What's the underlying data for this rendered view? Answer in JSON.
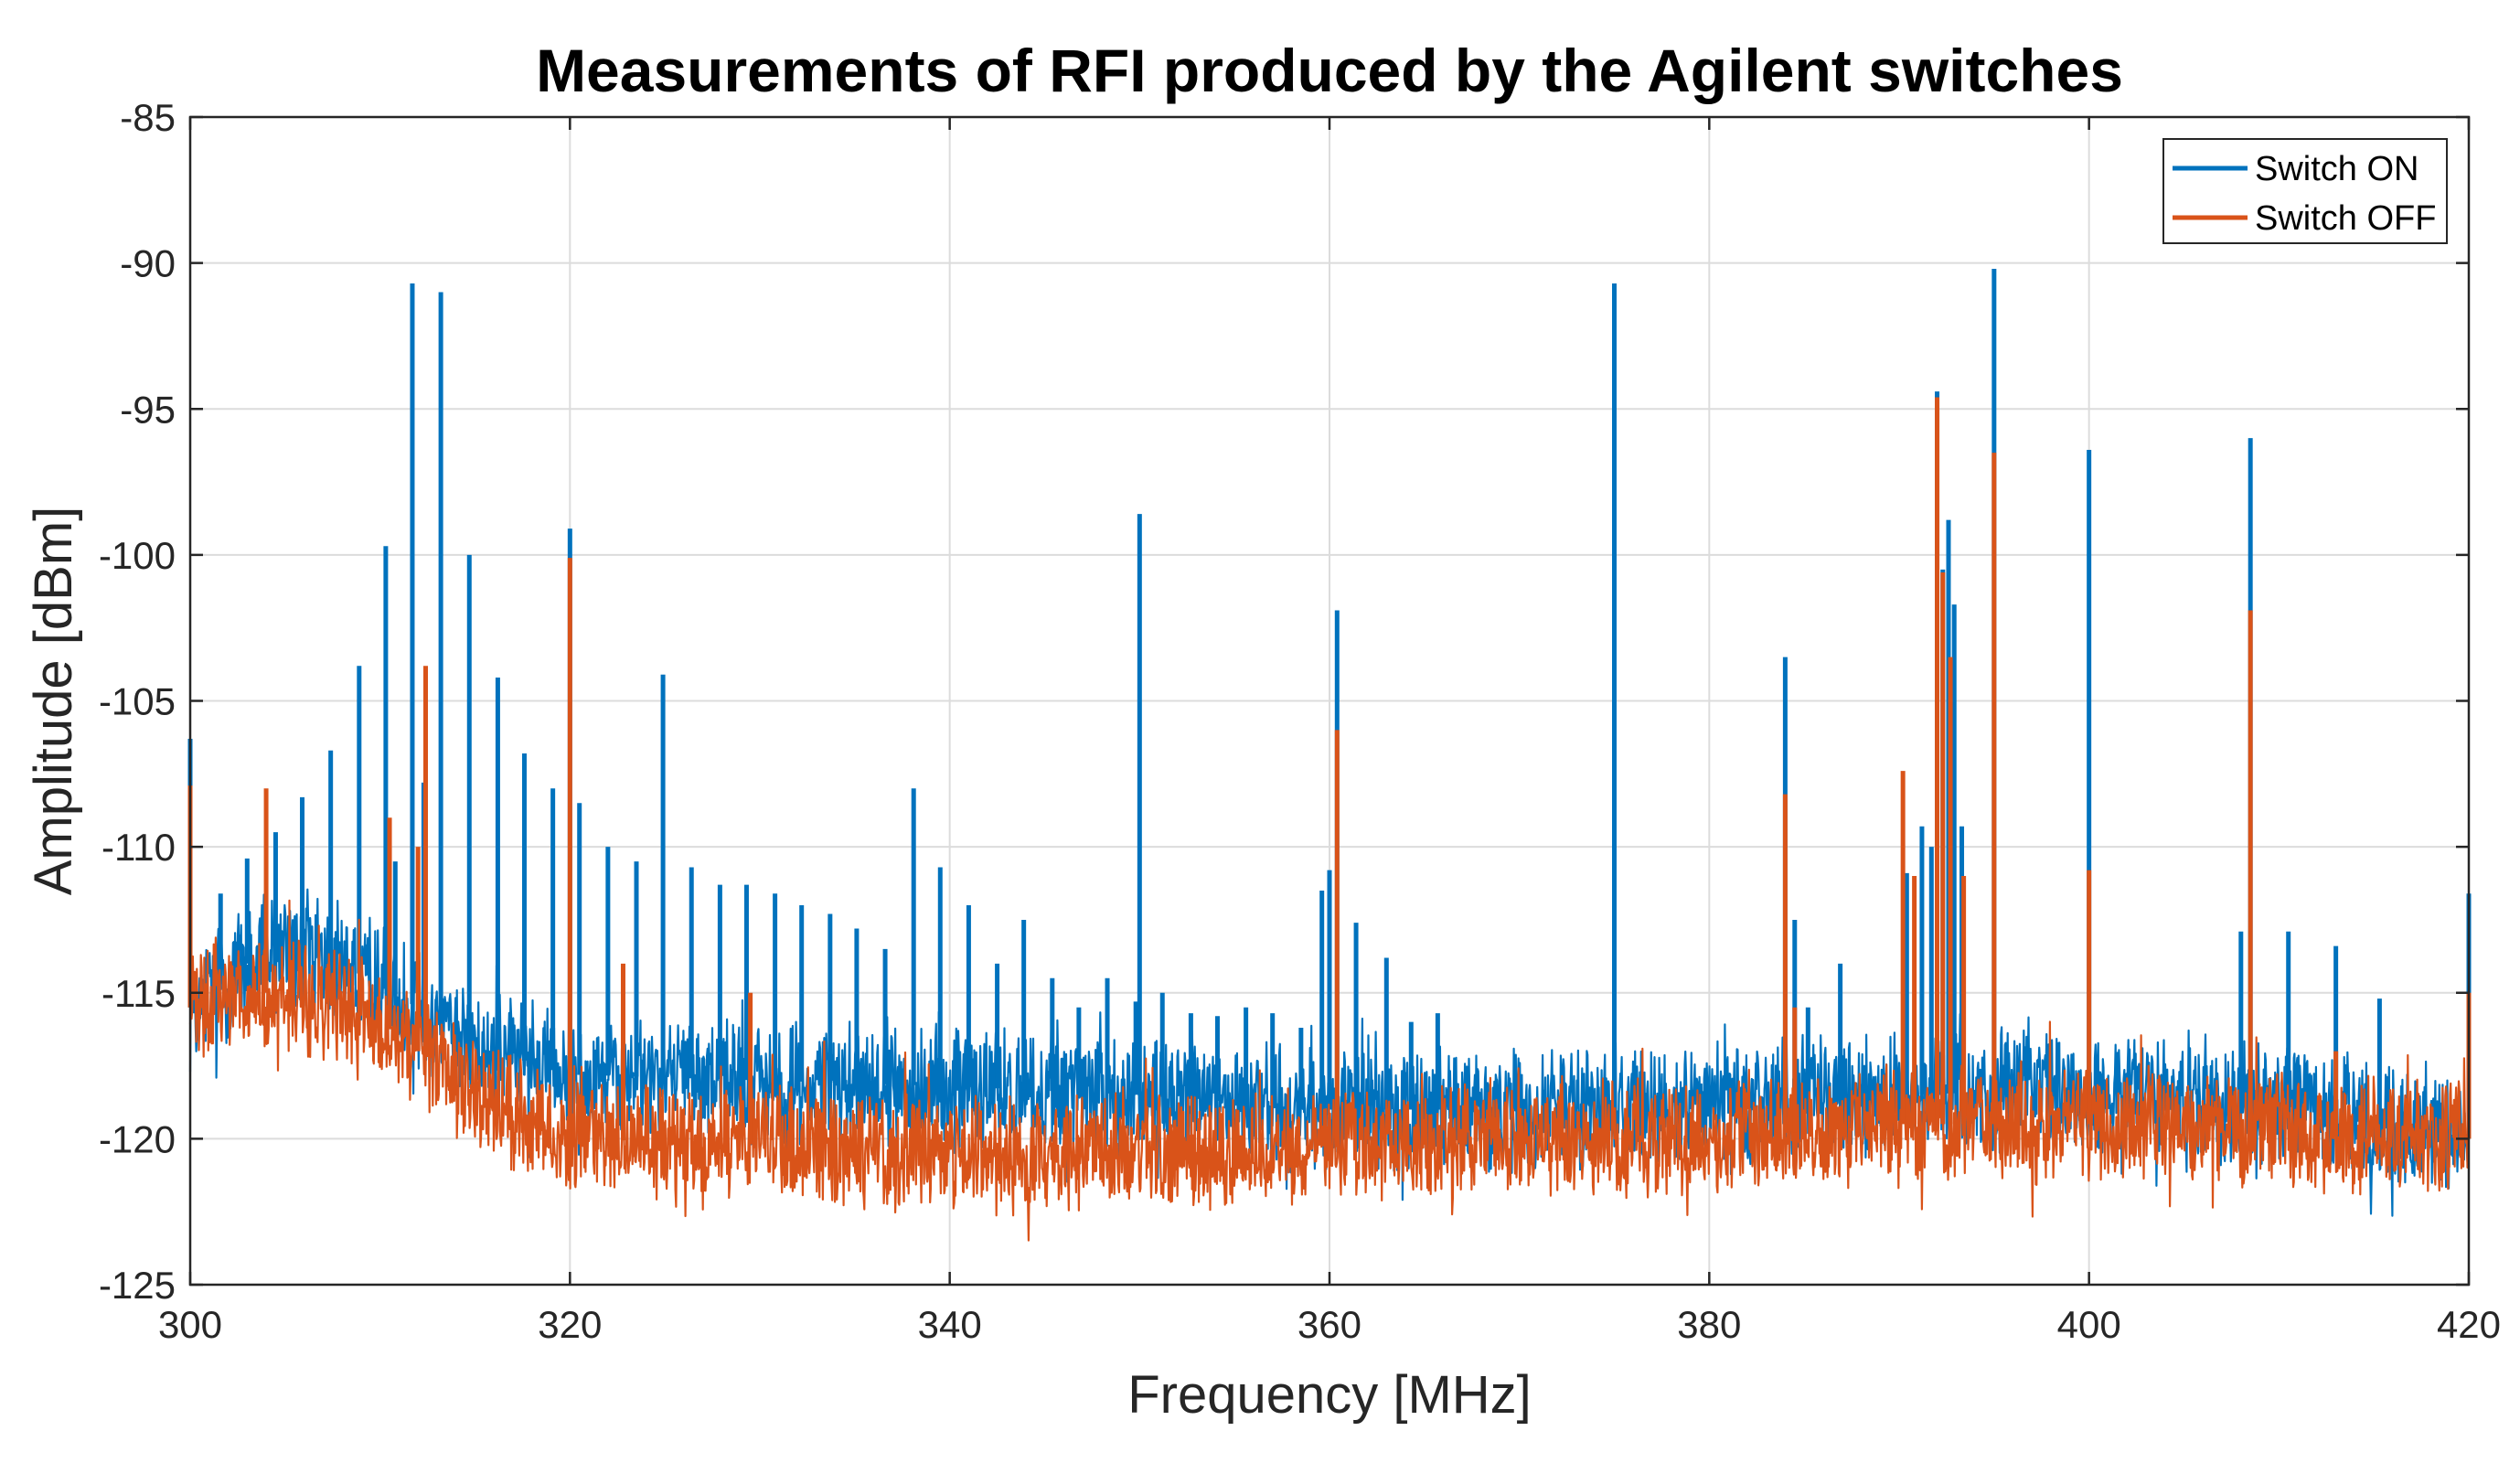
{
  "chart_data": {
    "type": "line",
    "title": "Measurements of RFI produced by the Agilent switches",
    "xlabel": "Frequency [MHz]",
    "ylabel": "Amplitude [dBm]",
    "xlim": [
      300,
      420
    ],
    "ylim": [
      -125,
      -85
    ],
    "xticks": [
      300,
      320,
      340,
      360,
      380,
      400,
      420
    ],
    "yticks": [
      -125,
      -120,
      -115,
      -110,
      -105,
      -100,
      -95,
      -90,
      -85
    ],
    "grid": true,
    "legend_position": "top-right",
    "series": [
      {
        "name": "Switch ON",
        "color": "#0072BD",
        "noise_floor": [
          [
            300,
            -115.5
          ],
          [
            304,
            -113.5
          ],
          [
            308,
            -114.0
          ],
          [
            312,
            -115.5
          ],
          [
            316,
            -117.0
          ],
          [
            320,
            -117.8
          ],
          [
            330,
            -118.0
          ],
          [
            340,
            -118.2
          ],
          [
            350,
            -118.5
          ],
          [
            360,
            -119.0
          ],
          [
            370,
            -119.0
          ],
          [
            380,
            -118.8
          ],
          [
            390,
            -118.5
          ],
          [
            400,
            -118.3
          ],
          [
            410,
            -118.8
          ],
          [
            415,
            -119.5
          ],
          [
            420,
            -120.0
          ]
        ],
        "peaks": [
          [
            300.0,
            -106.3
          ],
          [
            301.6,
            -111.6
          ],
          [
            303.0,
            -110.4
          ],
          [
            304.5,
            -109.5
          ],
          [
            305.9,
            -108.3
          ],
          [
            307.4,
            -106.7
          ],
          [
            308.9,
            -103.8
          ],
          [
            310.3,
            -99.7
          ],
          [
            310.8,
            -110.5
          ],
          [
            311.7,
            -90.7
          ],
          [
            312.3,
            -107.8
          ],
          [
            313.2,
            -91.0
          ],
          [
            314.7,
            -100.0
          ],
          [
            316.2,
            -104.2
          ],
          [
            317.6,
            -106.8
          ],
          [
            319.1,
            -108.0
          ],
          [
            320.0,
            -99.1
          ],
          [
            320.5,
            -108.5
          ],
          [
            322.0,
            -110.0
          ],
          [
            323.5,
            -110.5
          ],
          [
            324.9,
            -104.1
          ],
          [
            326.4,
            -110.7
          ],
          [
            327.9,
            -111.3
          ],
          [
            329.3,
            -111.3
          ],
          [
            330.8,
            -111.6
          ],
          [
            332.2,
            -112.0
          ],
          [
            333.7,
            -112.3
          ],
          [
            335.1,
            -112.8
          ],
          [
            336.6,
            -113.5
          ],
          [
            338.1,
            -108.0
          ],
          [
            339.5,
            -110.7
          ],
          [
            341.0,
            -112.0
          ],
          [
            342.5,
            -114.0
          ],
          [
            343.9,
            -112.5
          ],
          [
            345.4,
            -114.5
          ],
          [
            346.8,
            -115.5
          ],
          [
            348.3,
            -114.5
          ],
          [
            349.8,
            -115.3
          ],
          [
            350.0,
            -98.6
          ],
          [
            351.2,
            -115.0
          ],
          [
            352.7,
            -115.7
          ],
          [
            354.1,
            -115.8
          ],
          [
            355.6,
            -115.5
          ],
          [
            357.0,
            -115.7
          ],
          [
            358.5,
            -116.2
          ],
          [
            359.6,
            -111.5
          ],
          [
            360.0,
            -110.8
          ],
          [
            360.4,
            -101.9
          ],
          [
            361.4,
            -112.6
          ],
          [
            363.0,
            -113.8
          ],
          [
            364.3,
            -116.0
          ],
          [
            365.7,
            -115.7
          ],
          [
            375.0,
            -90.7
          ],
          [
            384.0,
            -103.5
          ],
          [
            384.5,
            -112.5
          ],
          [
            385.2,
            -115.5
          ],
          [
            386.9,
            -114.0
          ],
          [
            390.4,
            -110.9
          ],
          [
            391.2,
            -109.3
          ],
          [
            391.7,
            -110.0
          ],
          [
            392.0,
            -94.4
          ],
          [
            392.3,
            -100.5
          ],
          [
            392.6,
            -98.8
          ],
          [
            392.9,
            -101.7
          ],
          [
            393.3,
            -109.3
          ],
          [
            395.0,
            -90.2
          ],
          [
            400.0,
            -96.4
          ],
          [
            408.0,
            -112.9
          ],
          [
            408.5,
            -96.0
          ],
          [
            410.5,
            -112.9
          ],
          [
            413.0,
            -113.4
          ],
          [
            415.3,
            -115.2
          ],
          [
            420.0,
            -111.6
          ]
        ]
      },
      {
        "name": "Switch OFF",
        "color": "#D95319",
        "noise_floor": [
          [
            300,
            -115.5
          ],
          [
            303,
            -115.0
          ],
          [
            306,
            -115.0
          ],
          [
            310,
            -116.0
          ],
          [
            313,
            -117.5
          ],
          [
            316,
            -119.0
          ],
          [
            320,
            -120.0
          ],
          [
            330,
            -120.2
          ],
          [
            340,
            -120.5
          ],
          [
            350,
            -120.5
          ],
          [
            360,
            -120.3
          ],
          [
            370,
            -120.0
          ],
          [
            380,
            -120.0
          ],
          [
            390,
            -119.5
          ],
          [
            400,
            -119.5
          ],
          [
            410,
            -119.8
          ],
          [
            420,
            -120.0
          ]
        ],
        "peaks": [
          [
            300.0,
            -107.9
          ],
          [
            304.0,
            -108.0
          ],
          [
            310.5,
            -109.0
          ],
          [
            312.0,
            -110.0
          ],
          [
            312.4,
            -103.8
          ],
          [
            320.0,
            -100.1
          ],
          [
            322.8,
            -114.0
          ],
          [
            329.5,
            -115.0
          ],
          [
            360.4,
            -106.0
          ],
          [
            384.0,
            -108.2
          ],
          [
            384.5,
            -115.5
          ],
          [
            390.2,
            -107.4
          ],
          [
            390.8,
            -111.0
          ],
          [
            392.0,
            -94.6
          ],
          [
            392.3,
            -100.6
          ],
          [
            392.7,
            -103.5
          ],
          [
            393.4,
            -111.0
          ],
          [
            395.0,
            -96.5
          ],
          [
            400.0,
            -110.8
          ],
          [
            408.5,
            -101.9
          ],
          [
            413.0,
            -117.0
          ],
          [
            420.0,
            -115.0
          ]
        ]
      }
    ]
  }
}
